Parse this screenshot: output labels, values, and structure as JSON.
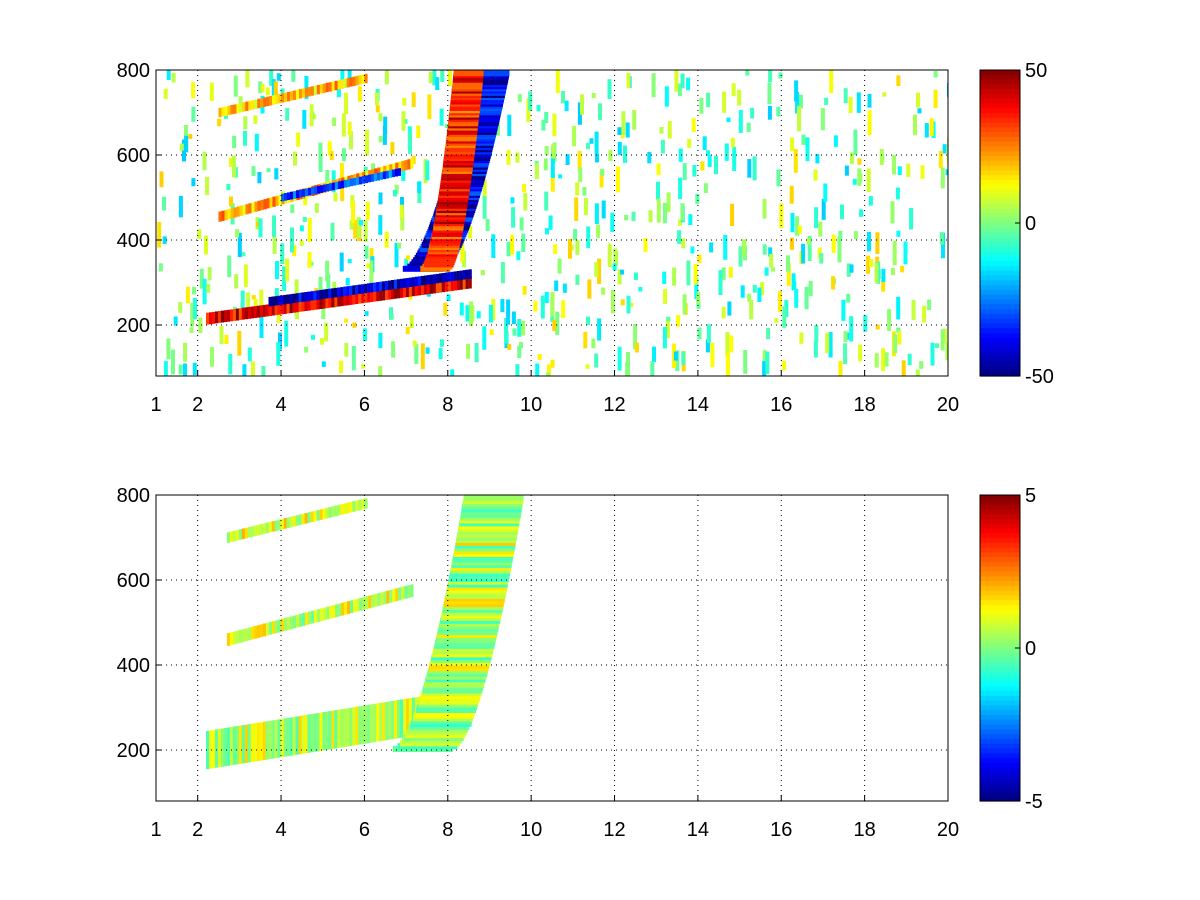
{
  "chart_data": [
    {
      "type": "heatmap",
      "title": "",
      "xlabel": "",
      "ylabel": "",
      "xlim": [
        1,
        20
      ],
      "ylim": [
        80,
        800
      ],
      "x_ticks": [
        1,
        2,
        4,
        6,
        8,
        10,
        12,
        14,
        16,
        18,
        20
      ],
      "x_tick_labels": [
        "1",
        "2",
        "4",
        "6",
        "8",
        "10",
        "12",
        "14",
        "16",
        "18",
        "20"
      ],
      "y_ticks": [
        200,
        400,
        600,
        800
      ],
      "y_tick_labels": [
        "200",
        "400",
        "600",
        "800"
      ],
      "grid": true,
      "colormap": "jet",
      "colorbar": {
        "min": -50,
        "max": 50,
        "ticks": [
          50,
          0,
          -50
        ],
        "tick_labels": [
          "50",
          "0",
          "-50"
        ]
      },
      "bands": [
        {
          "x_range": [
            2.2,
            8.5
          ],
          "y_start": 215,
          "y_end": 300,
          "value": 40,
          "width": 28
        },
        {
          "x_range": [
            3.7,
            8.5
          ],
          "y_start": 255,
          "y_end": 320,
          "value": -42,
          "width": 22
        },
        {
          "x_range": [
            2.5,
            7.1
          ],
          "y_start": 455,
          "y_end": 580,
          "value": 20,
          "width": 24
        },
        {
          "x_range": [
            4.0,
            6.8
          ],
          "y_start": 500,
          "y_end": 560,
          "value": -30,
          "width": 18
        },
        {
          "x_range": [
            2.5,
            6.0
          ],
          "y_start": 700,
          "y_end": 780,
          "value": 18,
          "width": 22
        }
      ],
      "curves": [
        {
          "x_range": [
            7.4,
            9.0
          ],
          "y_start": 330,
          "y_end": 790,
          "value": -40,
          "width": 40
        },
        {
          "x_range": [
            7.7,
            8.5
          ],
          "y_start": 330,
          "y_end": 790,
          "value": 35,
          "width": 30
        }
      ],
      "noise_fill": 0.5
    },
    {
      "type": "heatmap",
      "title": "",
      "xlabel": "",
      "ylabel": "",
      "xlim": [
        1,
        20
      ],
      "ylim": [
        80,
        800
      ],
      "x_ticks": [
        1,
        2,
        4,
        6,
        8,
        10,
        12,
        14,
        16,
        18,
        20
      ],
      "x_tick_labels": [
        "1",
        "2",
        "4",
        "6",
        "8",
        "10",
        "12",
        "14",
        "16",
        "18",
        "20"
      ],
      "y_ticks": [
        200,
        400,
        600,
        800
      ],
      "y_tick_labels": [
        "200",
        "400",
        "600",
        "800"
      ],
      "grid": true,
      "colormap": "jet",
      "colorbar": {
        "min": -5,
        "max": 5,
        "ticks": [
          5,
          0,
          -5
        ],
        "tick_labels": [
          "5",
          "0",
          "-5"
        ]
      },
      "bands": [
        {
          "x_range": [
            2.2,
            8.5
          ],
          "y_start": 200,
          "y_end": 300,
          "value": 0.6,
          "width": 90
        },
        {
          "x_range": [
            2.7,
            7.1
          ],
          "y_start": 460,
          "y_end": 575,
          "value": 0.8,
          "width": 30
        },
        {
          "x_range": [
            2.7,
            6.0
          ],
          "y_start": 700,
          "y_end": 780,
          "value": 1.0,
          "width": 25
        }
      ],
      "curves": [
        {
          "x_range": [
            7.4,
            9.1
          ],
          "y_start": 200,
          "y_end": 790,
          "value": 0.5,
          "width": 60
        }
      ],
      "noise_fill": 0.0
    }
  ]
}
